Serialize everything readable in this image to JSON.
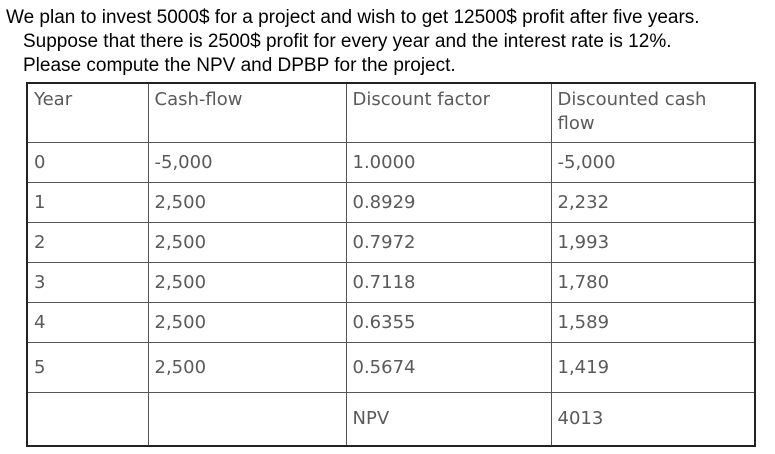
{
  "problem": {
    "lines": [
      "We plan to invest 5000$ for a project and wish to get 12500$ profit after five years.",
      "Suppose that there is 2500$ profit for every year and the interest rate is 12%.",
      "Please compute the NPV and DPBP for the project."
    ]
  },
  "table": {
    "headers": [
      "Year",
      "Cash-flow",
      "Discount factor",
      "Discounted cash flow"
    ],
    "rows": [
      [
        "0",
        "-5,000",
        "1.0000",
        "-5,000"
      ],
      [
        "1",
        "2,500",
        "0.8929",
        "2,232"
      ],
      [
        "2",
        "2,500",
        "0.7972",
        "1,993"
      ],
      [
        "3",
        "2,500",
        "0.7118",
        "1,780"
      ],
      [
        "4",
        "2,500",
        "0.6355",
        "1,589"
      ],
      [
        "5",
        "2,500",
        "0.5674",
        "1,419"
      ]
    ],
    "footer": {
      "label": "NPV",
      "value": "4013"
    }
  }
}
